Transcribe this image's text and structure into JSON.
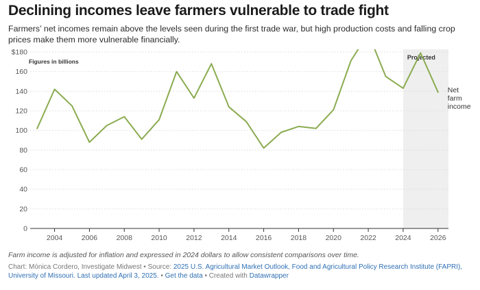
{
  "title": "Declining incomes leave farmers vulnerable to trade fight",
  "subtitle": "Farmers’ net incomes remain above the levels seen during the first trade war, but high production costs and falling crop prices make them more vulnerable financially.",
  "note": "Farm income is adjusted for inflation and expressed in 2024 dollars to allow consistent comparisons over time.",
  "footer": {
    "credit": "Chart: Mónica Cordero, Investigate Midwest • Source: ",
    "source_link": "2025 U.S. Agricultural Market Outlook, Food and Agricultural Policy Research Institute (FAPRI), University of Missouri. Last updated April 3, 2025.",
    "sep1": " • ",
    "data_link": "Get the data",
    "sep2": " • Created with ",
    "tool_link": "Datawrapper"
  },
  "colors": {
    "line": "#8aab4f",
    "projected_band": "#efefef",
    "grid": "#dcdcdc",
    "axis": "#333333"
  },
  "chart_data": {
    "type": "line",
    "ylabel": "Figures in billions",
    "ylim": [
      0,
      180
    ],
    "yticks": [
      0,
      20,
      40,
      60,
      80,
      100,
      120,
      140,
      160,
      180
    ],
    "ytick_labels": [
      "0",
      "20",
      "40",
      "60",
      "80",
      "100",
      "120",
      "140",
      "160",
      "$180"
    ],
    "xlim": [
      2002.6,
      2026.6
    ],
    "xticks": [
      2004,
      2006,
      2008,
      2010,
      2012,
      2014,
      2016,
      2018,
      2020,
      2022,
      2024,
      2026
    ],
    "projected": {
      "label": "Projected",
      "from": 2024,
      "to": 2026.6
    },
    "series": [
      {
        "name": "Net farm income",
        "x": [
          2003,
          2004,
          2005,
          2006,
          2007,
          2008,
          2009,
          2010,
          2011,
          2012,
          2013,
          2014,
          2015,
          2016,
          2017,
          2018,
          2019,
          2020,
          2021,
          2022,
          2023,
          2024,
          2025,
          2026
        ],
        "values": [
          102,
          142,
          125,
          88,
          105,
          114,
          91,
          111,
          160,
          133,
          168,
          124,
          109,
          82,
          98,
          104,
          102,
          121,
          171,
          199,
          155,
          143,
          179,
          139
        ]
      }
    ],
    "series_label_lines": [
      "Net",
      "farm",
      "income"
    ]
  }
}
